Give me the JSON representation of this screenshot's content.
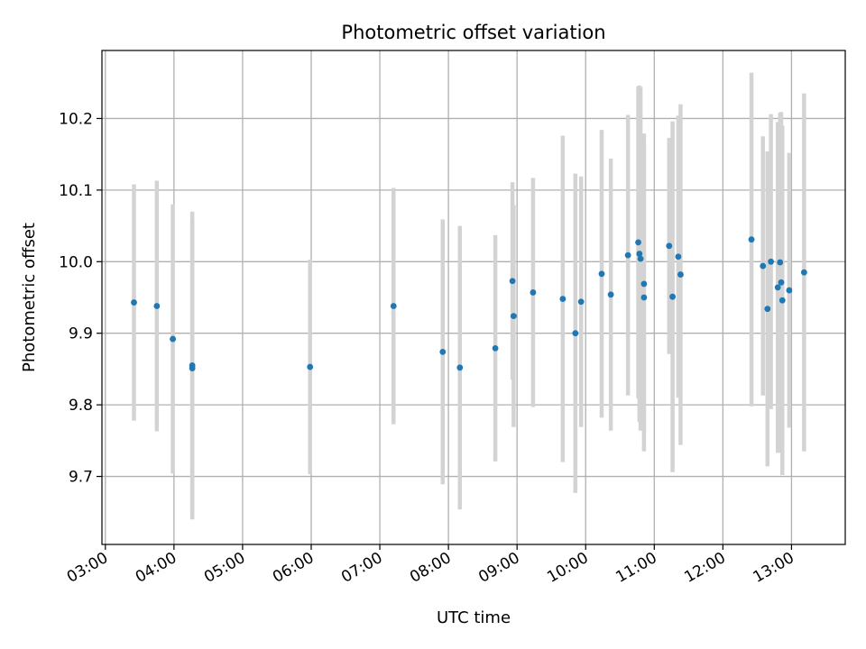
{
  "chart_data": {
    "type": "scatter",
    "title": "Photometric offset variation",
    "xlabel": "UTC time",
    "ylabel": "Photometric offset",
    "x_unit": "UTC time (HH:MM)",
    "xlim": [
      "02:57",
      "13:47"
    ],
    "ylim": [
      9.605,
      10.295
    ],
    "x_ticks": [
      "03:00",
      "04:00",
      "05:00",
      "06:00",
      "07:00",
      "08:00",
      "09:00",
      "10:00",
      "11:00",
      "12:00",
      "13:00"
    ],
    "y_ticks": [
      9.7,
      9.8,
      9.9,
      10.0,
      10.1,
      10.2
    ],
    "y_tick_labels": [
      "9.7",
      "9.8",
      "9.9",
      "10.0",
      "10.1",
      "10.2"
    ],
    "grid": true,
    "colors": {
      "marker": "#1f77b4",
      "errorbar": "#d3d3d3",
      "grid": "#b0b0b0"
    },
    "series": [
      {
        "points": [
          {
            "x": "03:25",
            "y": 9.943,
            "err": 0.165
          },
          {
            "x": "03:45",
            "y": 9.938,
            "err": 0.175
          },
          {
            "x": "03:59",
            "y": 9.892,
            "err": 0.188
          },
          {
            "x": "04:16",
            "y": 9.855,
            "err": 0.215
          },
          {
            "x": "04:16",
            "y": 9.851,
            "err": 0.208
          },
          {
            "x": "05:59",
            "y": 9.853,
            "err": 0.15
          },
          {
            "x": "07:12",
            "y": 9.938,
            "err": 0.165
          },
          {
            "x": "07:55",
            "y": 9.874,
            "err": 0.185
          },
          {
            "x": "08:10",
            "y": 9.852,
            "err": 0.198
          },
          {
            "x": "08:41",
            "y": 9.879,
            "err": 0.158
          },
          {
            "x": "08:56",
            "y": 9.973,
            "err": 0.138
          },
          {
            "x": "08:57",
            "y": 9.924,
            "err": 0.155
          },
          {
            "x": "09:14",
            "y": 9.957,
            "err": 0.16
          },
          {
            "x": "09:40",
            "y": 9.948,
            "err": 0.228
          },
          {
            "x": "09:51",
            "y": 9.9,
            "err": 0.223
          },
          {
            "x": "09:56",
            "y": 9.944,
            "err": 0.175
          },
          {
            "x": "10:14",
            "y": 9.983,
            "err": 0.201
          },
          {
            "x": "10:22",
            "y": 9.954,
            "err": 0.19
          },
          {
            "x": "10:37",
            "y": 10.009,
            "err": 0.196
          },
          {
            "x": "10:46",
            "y": 10.027,
            "err": 0.218
          },
          {
            "x": "10:47",
            "y": 10.011,
            "err": 0.235
          },
          {
            "x": "10:48",
            "y": 10.004,
            "err": 0.24
          },
          {
            "x": "10:51",
            "y": 9.969,
            "err": 0.21
          },
          {
            "x": "10:51",
            "y": 9.95,
            "err": 0.215
          },
          {
            "x": "11:13",
            "y": 10.022,
            "err": 0.151
          },
          {
            "x": "11:16",
            "y": 9.951,
            "err": 0.245
          },
          {
            "x": "11:21",
            "y": 10.007,
            "err": 0.197
          },
          {
            "x": "11:23",
            "y": 9.982,
            "err": 0.238
          },
          {
            "x": "12:25",
            "y": 10.031,
            "err": 0.233
          },
          {
            "x": "12:35",
            "y": 9.994,
            "err": 0.181
          },
          {
            "x": "12:39",
            "y": 9.934,
            "err": 0.22
          },
          {
            "x": "12:42",
            "y": 10.0,
            "err": 0.206
          },
          {
            "x": "12:48",
            "y": 9.964,
            "err": 0.231
          },
          {
            "x": "12:50",
            "y": 9.999,
            "err": 0.209
          },
          {
            "x": "12:51",
            "y": 9.971,
            "err": 0.238
          },
          {
            "x": "12:52",
            "y": 9.946,
            "err": 0.244
          },
          {
            "x": "12:58",
            "y": 9.96,
            "err": 0.192
          },
          {
            "x": "13:11",
            "y": 9.985,
            "err": 0.25
          }
        ]
      }
    ]
  }
}
